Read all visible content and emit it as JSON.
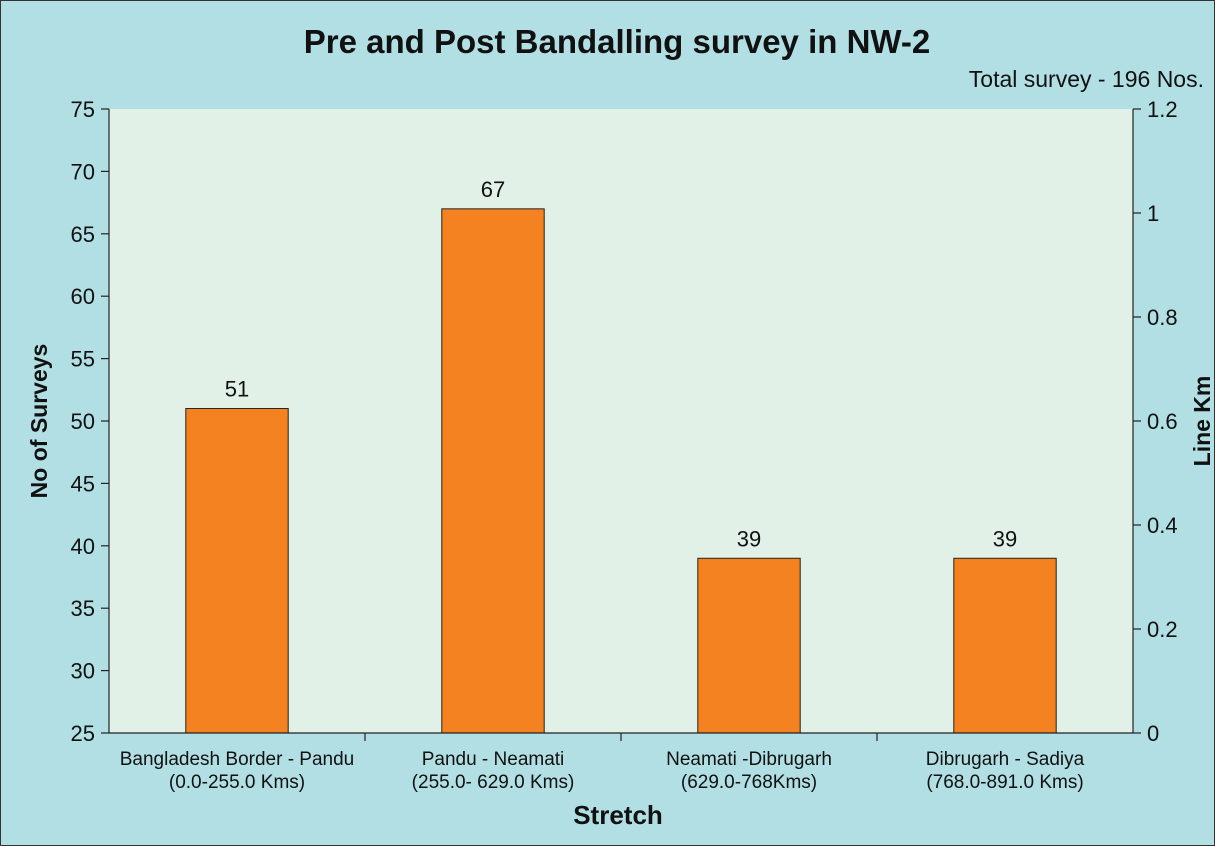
{
  "chart_data": {
    "type": "bar",
    "title": "Pre and Post Bandalling survey in NW-2",
    "subtitle": "Total survey - 196 Nos.",
    "xlabel": "Stretch",
    "ylabel": "No of Surveys",
    "y2label": "Line Km",
    "categories": [
      [
        "Bangladesh Border - Pandu",
        "(0.0-255.0 Kms)"
      ],
      [
        "Pandu - Neamati",
        "(255.0- 629.0 Kms)"
      ],
      [
        "Neamati -Dibrugarh",
        "(629.0-768Kms)"
      ],
      [
        "Dibrugarh - Sadiya",
        "(768.0-891.0 Kms)"
      ]
    ],
    "values": [
      51,
      67,
      39,
      39
    ],
    "ylim": [
      25,
      75
    ],
    "yticks": [
      25,
      30,
      35,
      40,
      45,
      50,
      55,
      60,
      65,
      70,
      75
    ],
    "y2lim": [
      0,
      1.2
    ],
    "y2ticks": [
      "0",
      "0.2",
      "0.4",
      "0.6",
      "0.8",
      "1",
      "1.2"
    ],
    "grid": false,
    "colors": {
      "background": "#b1dfe3",
      "plot_area": "#e2f1e7",
      "bar": "#f58220",
      "bar_edge": "#222222"
    }
  }
}
